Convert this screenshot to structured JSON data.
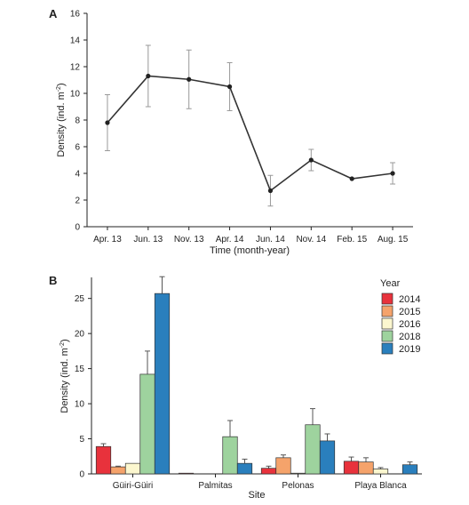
{
  "chart_data": [
    {
      "panel_label": "A",
      "type": "line",
      "categories": [
        "Apr. 13",
        "Jun. 13",
        "Nov. 13",
        "Apr. 14",
        "Jun. 14",
        "Nov. 14",
        "Feb. 15",
        "Aug. 15"
      ],
      "values": [
        7.8,
        11.3,
        11.05,
        10.5,
        2.7,
        5.0,
        3.6,
        4.0
      ],
      "error": [
        2.1,
        2.3,
        2.2,
        1.8,
        1.15,
        0.8,
        0.0,
        0.8
      ],
      "xlabel": "Time (month-year)",
      "ylabel": "Density (ind. m",
      "ylabel_sup": "-2",
      "ylabel_close": ")",
      "ylim": [
        0,
        16
      ],
      "yticks": [
        0,
        2,
        4,
        6,
        8,
        10,
        12,
        14,
        16
      ],
      "grid": false,
      "colors": {
        "line": "#333333",
        "marker": "#222222",
        "error": "#999999"
      }
    },
    {
      "panel_label": "B",
      "type": "bar",
      "categories": [
        "Güiri-Güiri",
        "Palmitas",
        "Pelonas",
        "Playa Blanca"
      ],
      "legend_title": "Year",
      "legend_position": "top-right",
      "series": [
        {
          "name": "2014",
          "color": "#e8323c",
          "values": [
            3.9,
            0.1,
            0.8,
            1.8
          ],
          "error": [
            0.4,
            0,
            0.3,
            0.6
          ]
        },
        {
          "name": "2015",
          "color": "#f5a36b",
          "values": [
            1.0,
            0,
            2.3,
            1.7
          ],
          "error": [
            0.1,
            0,
            0.4,
            0.6
          ]
        },
        {
          "name": "2016",
          "color": "#fcf7cf",
          "values": [
            1.5,
            0,
            0.1,
            0.7
          ],
          "error": [
            0,
            0,
            0,
            0.2
          ]
        },
        {
          "name": "2018",
          "color": "#9ed39e",
          "values": [
            14.2,
            5.3,
            7.0,
            0
          ],
          "error": [
            3.3,
            2.3,
            2.3,
            0
          ]
        },
        {
          "name": "2019",
          "color": "#2a7fbd",
          "values": [
            25.7,
            1.5,
            4.7,
            1.3
          ],
          "error": [
            2.4,
            0.6,
            1.0,
            0.4
          ]
        }
      ],
      "xlabel": "Site",
      "ylabel": "Density (ind. m",
      "ylabel_sup": "-2",
      "ylabel_close": ")",
      "ylim": [
        0,
        28
      ],
      "yticks": [
        0,
        5,
        10,
        15,
        20,
        25
      ],
      "grid": false
    }
  ]
}
